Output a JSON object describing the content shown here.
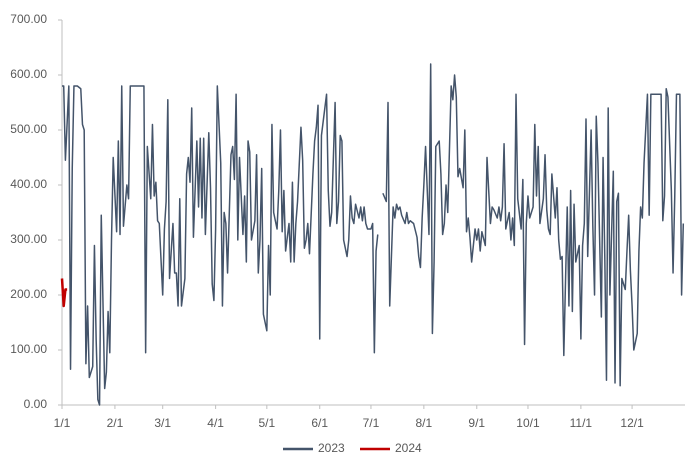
{
  "chart_data": {
    "type": "line",
    "xlim": [
      0,
      365
    ],
    "xticks": [
      {
        "value": 0,
        "label": "1/1"
      },
      {
        "value": 31,
        "label": "2/1"
      },
      {
        "value": 59,
        "label": "3/1"
      },
      {
        "value": 90,
        "label": "4/1"
      },
      {
        "value": 120,
        "label": "5/1"
      },
      {
        "value": 151,
        "label": "6/1"
      },
      {
        "value": 181,
        "label": "7/1"
      },
      {
        "value": 212,
        "label": "8/1"
      },
      {
        "value": 243,
        "label": "9/1"
      },
      {
        "value": 273,
        "label": "10/1"
      },
      {
        "value": 304,
        "label": "11/1"
      },
      {
        "value": 334,
        "label": "12/1"
      }
    ],
    "ylim": [
      0,
      700
    ],
    "yticks": [
      {
        "value": 0,
        "label": "0.00"
      },
      {
        "value": 100,
        "label": "100.00"
      },
      {
        "value": 200,
        "label": "200.00"
      },
      {
        "value": 300,
        "label": "300.00"
      },
      {
        "value": 400,
        "label": "400.00"
      },
      {
        "value": 500,
        "label": "500.00"
      },
      {
        "value": 600,
        "label": "600.00"
      },
      {
        "value": 700,
        "label": "700.00"
      }
    ],
    "legend": "bottom",
    "series": [
      {
        "name": "2023",
        "color": "#44546a",
        "x": [
          0,
          1,
          2,
          4,
          5,
          6,
          7,
          9,
          11,
          12,
          13,
          14,
          15,
          16,
          18,
          19,
          20,
          21,
          22,
          23,
          25,
          26,
          27,
          28,
          29,
          30,
          32,
          33,
          34,
          35,
          36,
          38,
          39,
          40,
          46,
          48,
          49,
          50,
          52,
          53,
          54,
          55,
          56,
          57,
          59,
          60,
          61,
          62,
          63,
          65,
          66,
          67,
          68,
          69,
          70,
          72,
          73,
          74,
          75,
          76,
          77,
          79,
          80,
          81,
          82,
          83,
          84,
          86,
          87,
          88,
          89,
          90,
          91,
          93,
          94,
          95,
          96,
          97,
          99,
          100,
          101,
          102,
          103,
          104,
          106,
          107,
          108,
          109,
          110,
          111,
          113,
          114,
          115,
          116,
          117,
          118,
          120,
          121,
          122,
          123,
          124,
          126,
          127,
          128,
          129,
          130,
          131,
          133,
          134,
          135,
          136,
          137,
          138,
          140,
          141,
          142,
          143,
          144,
          145,
          147,
          148,
          149,
          150,
          151,
          152,
          154,
          155,
          156,
          157,
          158,
          160,
          161,
          162,
          163,
          164,
          165,
          167,
          168,
          169,
          170,
          171,
          172,
          174,
          175,
          176,
          177,
          178,
          179,
          181,
          182,
          183,
          184,
          185,
          186,
          188,
          190,
          191,
          192,
          194,
          195,
          196,
          197,
          198,
          199,
          201,
          202,
          203,
          204,
          206,
          208,
          209,
          210,
          211,
          212,
          213,
          215,
          216,
          217,
          218,
          219,
          221,
          222,
          223,
          224,
          225,
          226,
          228,
          229,
          230,
          231,
          232,
          233,
          235,
          236,
          237,
          238,
          239,
          240,
          242,
          243,
          244,
          245,
          246,
          248,
          249,
          250,
          251,
          252,
          253,
          255,
          256,
          257,
          258,
          259,
          260,
          262,
          263,
          264,
          265,
          266,
          267,
          269,
          270,
          271,
          272,
          273,
          274,
          276,
          277,
          278,
          279,
          280,
          282,
          283,
          284,
          285,
          286,
          287,
          289,
          290,
          291,
          292,
          293,
          294,
          296,
          297,
          298,
          299,
          300,
          301,
          303,
          304,
          305,
          306,
          307,
          308,
          310,
          311,
          312,
          313,
          314,
          316,
          317,
          318,
          319,
          320,
          321,
          323,
          324,
          325,
          326,
          327,
          328,
          330,
          331,
          332,
          333,
          334,
          335,
          337,
          338,
          339,
          340,
          341,
          343,
          344,
          345,
          351,
          352,
          353,
          354,
          355,
          357,
          358,
          359,
          360,
          362,
          363,
          364
        ],
        "values": [
          580,
          580,
          445,
          580,
          65,
          430,
          580,
          580,
          575,
          510,
          500,
          75,
          180,
          50,
          70,
          290,
          120,
          10,
          0,
          345,
          30,
          60,
          170,
          95,
          300,
          450,
          315,
          480,
          310,
          580,
          325,
          400,
          375,
          580,
          580,
          580,
          95,
          470,
          375,
          510,
          380,
          405,
          335,
          330,
          200,
          320,
          370,
          555,
          230,
          330,
          240,
          240,
          180,
          375,
          180,
          230,
          420,
          450,
          405,
          540,
          305,
          480,
          360,
          485,
          340,
          485,
          310,
          495,
          395,
          220,
          190,
          320,
          580,
          440,
          180,
          350,
          330,
          240,
          455,
          470,
          410,
          565,
          300,
          450,
          310,
          380,
          260,
          480,
          460,
          300,
          335,
          455,
          240,
          300,
          430,
          165,
          135,
          290,
          200,
          510,
          350,
          320,
          390,
          500,
          315,
          390,
          280,
          330,
          260,
          405,
          260,
          330,
          370,
          505,
          445,
          285,
          300,
          330,
          275,
          420,
          480,
          505,
          545,
          120,
          490,
          540,
          565,
          390,
          325,
          350,
          550,
          330,
          370,
          490,
          480,
          300,
          270,
          300,
          380,
          340,
          330,
          365,
          340,
          360,
          335,
          360,
          330,
          320,
          320,
          330,
          95,
          280,
          310,
          null,
          385,
          370,
          550,
          180,
          360,
          340,
          365,
          355,
          360,
          345,
          330,
          350,
          330,
          335,
          330,
          305,
          270,
          250,
          340,
          400,
          470,
          310,
          620,
          130,
          260,
          470,
          480,
          420,
          310,
          330,
          400,
          350,
          580,
          555,
          600,
          560,
          415,
          430,
          395,
          500,
          315,
          340,
          305,
          260,
          320,
          300,
          320,
          280,
          315,
          290,
          450,
          390,
          330,
          360,
          355,
          340,
          360,
          335,
          360,
          475,
          320,
          350,
          300,
          340,
          290,
          565,
          375,
          320,
          410,
          110,
          330,
          380,
          340,
          360,
          510,
          380,
          470,
          330,
          375,
          455,
          355,
          320,
          310,
          420,
          340,
          395,
          300,
          265,
          270,
          90,
          360,
          180,
          390,
          170,
          365,
          260,
          290,
          120,
          290,
          330,
          520,
          270,
          500,
          325,
          200,
          525,
          440,
          160,
          450,
          270,
          45,
          540,
          200,
          425,
          40,
          370,
          385,
          35,
          230,
          210,
          280,
          345,
          245,
          180,
          100,
          130,
          280,
          360,
          340,
          440,
          565,
          345,
          565,
          565,
          335,
          380,
          575,
          560,
          390,
          240,
          380,
          565,
          565,
          200,
          330
        ]
      },
      {
        "name": "2024",
        "color": "#c00000",
        "x": [
          0,
          1,
          2,
          3
        ],
        "values": [
          230,
          180,
          210,
          210
        ]
      }
    ]
  }
}
